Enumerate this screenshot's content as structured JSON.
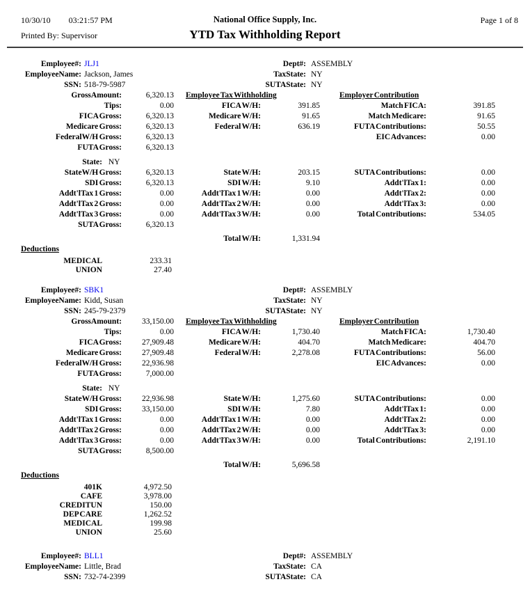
{
  "header": {
    "date": "10/30/10",
    "time": "03:21:57 PM",
    "company": "National Office Supply, Inc.",
    "page_info": "Page 1 of 8",
    "printed_by": "Printed By: Supervisor",
    "title": "YTD Tax Withholding Report"
  },
  "colors": {
    "employee_id_link": "#0000EE",
    "text": "#000000",
    "background": "#FFFFFF"
  },
  "labels": {
    "employee_no": "Employee#:",
    "employee_name": "EmployeeName:",
    "ssn": "SSN:",
    "dept": "Dept#:",
    "tax_state": "TaxState:",
    "suta_state": "SUTAState:",
    "gross_amount": "GrossAmount:",
    "tips": "Tips:",
    "fica_gross": "FICA Gross:",
    "medicare_gross": "Medicare Gross:",
    "federal_wh_gross": "FederalW/H Gross:",
    "futa_gross": "FUTA Gross:",
    "state": "State:",
    "state_wh_gross": "StateW/H Gross:",
    "sdi_gross": "SDI Gross:",
    "addtl_tax1_gross": "Addt'lTax 1 Gross:",
    "addtl_tax2_gross": "Addt'lTax 2 Gross:",
    "addtl_tax3_gross": "Addt'lTax 3 Gross:",
    "suta_gross": "SUTA Gross:",
    "employee_tax_withholding": "Employee Tax Withholding",
    "fica_wh": "FICA W/H:",
    "medicare_wh": "Medicare W/H:",
    "federal_wh": "Federal W/H:",
    "state_wh": "State W/H:",
    "sdi_wh": "SDI W/H:",
    "addtl_tax1_wh": "Addt'lTax 1 W/H:",
    "addtl_tax2_wh": "Addt'lTax 2 W/H:",
    "addtl_tax3_wh": "Addt'lTax 3 W/H:",
    "total_wh": "Total W/H:",
    "employer_contribution": "Employer Contribution",
    "match_fica": "Match FICA:",
    "match_medicare": "Match Medicare:",
    "futa_contributions": "FUTA Contributions:",
    "eic_advances": "EIC Advances:",
    "suta_contributions": "SUTA Contributions:",
    "addtl_tax1": "Addt'lTax 1:",
    "addtl_tax2": "Addt'lTax 2:",
    "addtl_tax3": "Addt'lTax 3:",
    "total_contributions": "Total Contributions:",
    "deductions": "Deductions"
  },
  "employees": [
    {
      "id": "JLJ1",
      "name": "Jackson, James",
      "ssn": "518-79-5987",
      "dept": "ASSEMBLY",
      "tax_state": "NY",
      "suta_state": "NY",
      "gross_amount": "6,320.13",
      "tips": "0.00",
      "fica_gross": "6,320.13",
      "medicare_gross": "6,320.13",
      "federal_wh_gross": "6,320.13",
      "futa_gross": "6,320.13",
      "state": "NY",
      "state_wh_gross": "6,320.13",
      "sdi_gross": "6,320.13",
      "addtl_tax1_gross": "0.00",
      "addtl_tax2_gross": "0.00",
      "addtl_tax3_gross": "0.00",
      "suta_gross": "6,320.13",
      "fica_wh": "391.85",
      "medicare_wh": "91.65",
      "federal_wh": "636.19",
      "state_wh": "203.15",
      "sdi_wh": "9.10",
      "addtl_tax1_wh": "0.00",
      "addtl_tax2_wh": "0.00",
      "addtl_tax3_wh": "0.00",
      "total_wh": "1,331.94",
      "match_fica": "391.85",
      "match_medicare": "91.65",
      "futa_contributions": "50.55",
      "eic_advances": "0.00",
      "suta_contributions": "0.00",
      "addtl_tax1": "0.00",
      "addtl_tax2": "0.00",
      "addtl_tax3": "0.00",
      "total_contributions": "534.05",
      "deductions": [
        {
          "code": "MEDICAL",
          "amount": "233.31"
        },
        {
          "code": "UNION",
          "amount": "27.40"
        }
      ]
    },
    {
      "id": "SBK1",
      "name": "Kidd, Susan",
      "ssn": "245-79-2379",
      "dept": "ASSEMBLY",
      "tax_state": "NY",
      "suta_state": "NY",
      "gross_amount": "33,150.00",
      "tips": "0.00",
      "fica_gross": "27,909.48",
      "medicare_gross": "27,909.48",
      "federal_wh_gross": "22,936.98",
      "futa_gross": "7,000.00",
      "state": "NY",
      "state_wh_gross": "22,936.98",
      "sdi_gross": "33,150.00",
      "addtl_tax1_gross": "0.00",
      "addtl_tax2_gross": "0.00",
      "addtl_tax3_gross": "0.00",
      "suta_gross": "8,500.00",
      "fica_wh": "1,730.40",
      "medicare_wh": "404.70",
      "federal_wh": "2,278.08",
      "state_wh": "1,275.60",
      "sdi_wh": "7.80",
      "addtl_tax1_wh": "0.00",
      "addtl_tax2_wh": "0.00",
      "addtl_tax3_wh": "0.00",
      "total_wh": "5,696.58",
      "match_fica": "1,730.40",
      "match_medicare": "404.70",
      "futa_contributions": "56.00",
      "eic_advances": "0.00",
      "suta_contributions": "0.00",
      "addtl_tax1": "0.00",
      "addtl_tax2": "0.00",
      "addtl_tax3": "0.00",
      "total_contributions": "2,191.10",
      "deductions": [
        {
          "code": "401K",
          "amount": "4,972.50"
        },
        {
          "code": "CAFE",
          "amount": "3,978.00"
        },
        {
          "code": "CREDITUN",
          "amount": "150.00"
        },
        {
          "code": "DEP CARE",
          "amount": "1,262.52"
        },
        {
          "code": "MEDICAL",
          "amount": "199.98"
        },
        {
          "code": "UNION",
          "amount": "25.60"
        }
      ]
    },
    {
      "id": "BLL1",
      "name": "Little, Brad",
      "ssn": "732-74-2399",
      "dept": "ASSEMBLY",
      "tax_state": "CA",
      "suta_state": "CA"
    }
  ]
}
